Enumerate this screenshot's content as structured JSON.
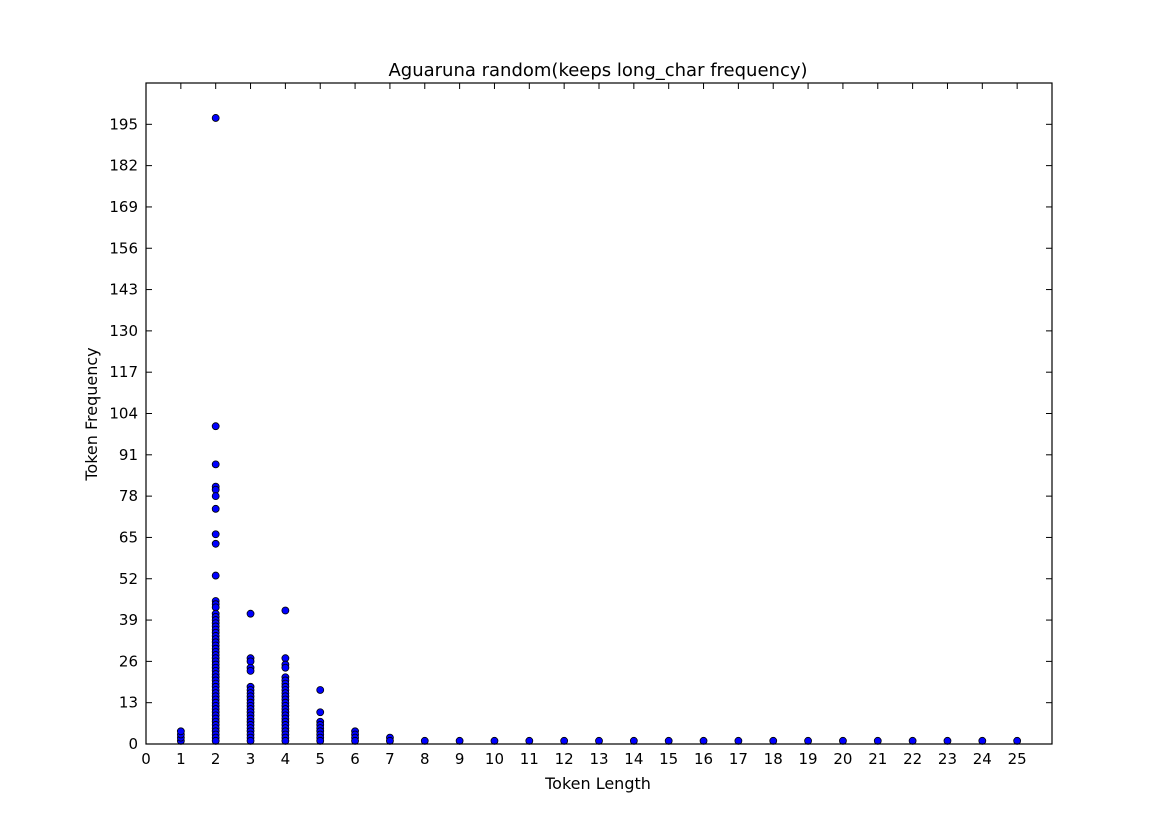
{
  "chart_data": {
    "type": "scatter",
    "title": "Aguaruna random(keeps long_char frequency)",
    "xlabel": "Token Length",
    "ylabel": "Token Frequency",
    "xlim": [
      0,
      26
    ],
    "ylim": [
      0,
      208
    ],
    "xticks": [
      0,
      1,
      2,
      3,
      4,
      5,
      6,
      7,
      8,
      9,
      10,
      11,
      12,
      13,
      14,
      15,
      16,
      17,
      18,
      19,
      20,
      21,
      22,
      23,
      24,
      25
    ],
    "yticks": [
      0,
      13,
      26,
      39,
      52,
      65,
      78,
      91,
      104,
      117,
      130,
      143,
      156,
      169,
      182,
      195
    ],
    "grid": false,
    "series": [
      {
        "color": "#0000ff",
        "points": [
          [
            1,
            1
          ],
          [
            1,
            2
          ],
          [
            1,
            3
          ],
          [
            1,
            4
          ],
          [
            2,
            197
          ],
          [
            2,
            100
          ],
          [
            2,
            88
          ],
          [
            2,
            81
          ],
          [
            2,
            80
          ],
          [
            2,
            78
          ],
          [
            2,
            74
          ],
          [
            2,
            66
          ],
          [
            2,
            63
          ],
          [
            2,
            53
          ],
          [
            2,
            45
          ],
          [
            2,
            44
          ],
          [
            2,
            43
          ],
          [
            2,
            41
          ],
          [
            2,
            40
          ],
          [
            2,
            39
          ],
          [
            2,
            38
          ],
          [
            2,
            37
          ],
          [
            2,
            36
          ],
          [
            2,
            35
          ],
          [
            2,
            34
          ],
          [
            2,
            33
          ],
          [
            2,
            32
          ],
          [
            2,
            31
          ],
          [
            2,
            30
          ],
          [
            2,
            29
          ],
          [
            2,
            28
          ],
          [
            2,
            27
          ],
          [
            2,
            26
          ],
          [
            2,
            25
          ],
          [
            2,
            24
          ],
          [
            2,
            23
          ],
          [
            2,
            22
          ],
          [
            2,
            21
          ],
          [
            2,
            20
          ],
          [
            2,
            19
          ],
          [
            2,
            18
          ],
          [
            2,
            17
          ],
          [
            2,
            16
          ],
          [
            2,
            15
          ],
          [
            2,
            14
          ],
          [
            2,
            13
          ],
          [
            2,
            12
          ],
          [
            2,
            11
          ],
          [
            2,
            10
          ],
          [
            2,
            9
          ],
          [
            2,
            8
          ],
          [
            2,
            7
          ],
          [
            2,
            6
          ],
          [
            2,
            5
          ],
          [
            2,
            4
          ],
          [
            2,
            3
          ],
          [
            2,
            2
          ],
          [
            2,
            1
          ],
          [
            3,
            41
          ],
          [
            3,
            27
          ],
          [
            3,
            26
          ],
          [
            3,
            24
          ],
          [
            3,
            23
          ],
          [
            3,
            18
          ],
          [
            3,
            17
          ],
          [
            3,
            16
          ],
          [
            3,
            15
          ],
          [
            3,
            14
          ],
          [
            3,
            13
          ],
          [
            3,
            12
          ],
          [
            3,
            11
          ],
          [
            3,
            10
          ],
          [
            3,
            9
          ],
          [
            3,
            8
          ],
          [
            3,
            7
          ],
          [
            3,
            6
          ],
          [
            3,
            5
          ],
          [
            3,
            4
          ],
          [
            3,
            3
          ],
          [
            3,
            2
          ],
          [
            3,
            1
          ],
          [
            4,
            42
          ],
          [
            4,
            27
          ],
          [
            4,
            25
          ],
          [
            4,
            24
          ],
          [
            4,
            21
          ],
          [
            4,
            20
          ],
          [
            4,
            19
          ],
          [
            4,
            18
          ],
          [
            4,
            17
          ],
          [
            4,
            16
          ],
          [
            4,
            15
          ],
          [
            4,
            14
          ],
          [
            4,
            13
          ],
          [
            4,
            12
          ],
          [
            4,
            11
          ],
          [
            4,
            10
          ],
          [
            4,
            9
          ],
          [
            4,
            8
          ],
          [
            4,
            7
          ],
          [
            4,
            6
          ],
          [
            4,
            5
          ],
          [
            4,
            4
          ],
          [
            4,
            3
          ],
          [
            4,
            2
          ],
          [
            4,
            1
          ],
          [
            5,
            17
          ],
          [
            5,
            10
          ],
          [
            5,
            7
          ],
          [
            5,
            6
          ],
          [
            5,
            5
          ],
          [
            5,
            4
          ],
          [
            5,
            3
          ],
          [
            5,
            2
          ],
          [
            5,
            1
          ],
          [
            6,
            4
          ],
          [
            6,
            3
          ],
          [
            6,
            2
          ],
          [
            6,
            1
          ],
          [
            7,
            2
          ],
          [
            7,
            1
          ],
          [
            8,
            1
          ],
          [
            9,
            1
          ],
          [
            10,
            1
          ],
          [
            11,
            1
          ],
          [
            12,
            1
          ],
          [
            13,
            1
          ],
          [
            14,
            1
          ],
          [
            15,
            1
          ],
          [
            16,
            1
          ],
          [
            17,
            1
          ],
          [
            18,
            1
          ],
          [
            19,
            1
          ],
          [
            20,
            1
          ],
          [
            21,
            1
          ],
          [
            22,
            1
          ],
          [
            23,
            1
          ],
          [
            24,
            1
          ],
          [
            25,
            1
          ]
        ]
      }
    ]
  }
}
